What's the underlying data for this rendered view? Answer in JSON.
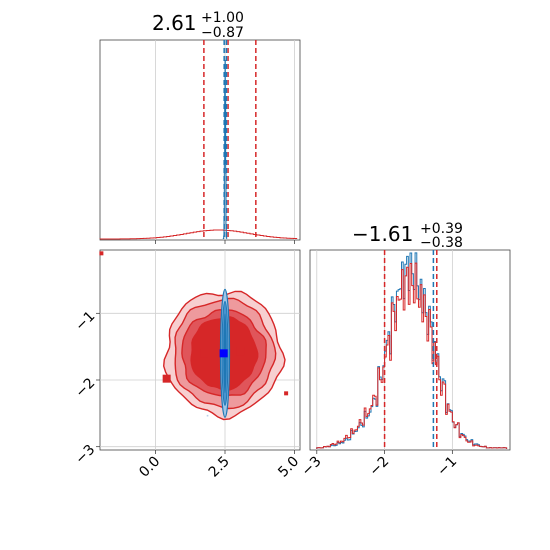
{
  "chart_data": [
    {
      "type": "histogram",
      "panel": "top-left marginal (parameter 1)",
      "title": {
        "value": "2.61",
        "upper": "+1.00",
        "lower": "−0.87"
      },
      "xlim": [
        -2.0,
        5.2
      ],
      "grid": true,
      "series": [
        {
          "name": "",
          "color": "#d62728",
          "dashed_lines_x": [
            1.74,
            2.61,
            3.61
          ],
          "shape": "broad low distribution"
        },
        {
          "name": "",
          "color": "#1f77b4",
          "dashed_lines_x": [
            2.47,
            2.55
          ],
          "shape": "narrow spike near 2.5"
        }
      ]
    },
    {
      "type": "contour",
      "panel": "bottom-left 2D (parameter 1 vs parameter 2)",
      "xlim": [
        -2.0,
        5.2
      ],
      "ylim": [
        -3.05,
        -0.05
      ],
      "x_ticks": [
        "0.0",
        "2.5",
        "5.0"
      ],
      "x_tick_values": [
        0.0,
        2.5,
        5.0
      ],
      "y_ticks": [
        "−1",
        "−2",
        "−3"
      ],
      "y_tick_values": [
        -1,
        -2,
        -3
      ],
      "grid": true,
      "series": [
        {
          "name": "",
          "color": "#d62728",
          "center": [
            2.45,
            -1.6
          ]
        },
        {
          "name": "",
          "color": "#1f77b4",
          "center": [
            2.5,
            -1.6
          ]
        }
      ],
      "markers": [
        {
          "x": -1.95,
          "y": -0.1,
          "color": "#d62728"
        },
        {
          "x": 0.4,
          "y": -1.98,
          "color": "#d62728"
        },
        {
          "x": 1.75,
          "y": -1.6,
          "color": "#d62728"
        },
        {
          "x": 3.05,
          "y": -1.57,
          "color": "#d62728"
        },
        {
          "x": 4.7,
          "y": -2.2,
          "color": "#d62728"
        },
        {
          "x": 2.45,
          "y": -1.6,
          "color": "#0000ff"
        }
      ]
    },
    {
      "type": "histogram",
      "panel": "bottom-right marginal (parameter 2)",
      "title": {
        "value": "−1.61",
        "upper": "+0.39",
        "lower": "−0.38"
      },
      "xlim": [
        -3.1,
        -0.15
      ],
      "x_ticks": [
        "−3",
        "−2",
        "−1"
      ],
      "x_tick_values": [
        -3,
        -2,
        -1
      ],
      "grid": true,
      "series": [
        {
          "name": "",
          "color": "#d62728",
          "dashed_lines_x": [
            -2.0,
            -1.23
          ]
        },
        {
          "name": "",
          "color": "#1f77b4",
          "dashed_lines_x": [
            -1.28
          ]
        }
      ],
      "bin_edges": [
        -3.0,
        -2.9,
        -2.8,
        -2.7,
        -2.6,
        -2.5,
        -2.4,
        -2.3,
        -2.2,
        -2.1,
        -2.0,
        -1.9,
        -1.8,
        -1.7,
        -1.6,
        -1.5,
        -1.4,
        -1.3,
        -1.2,
        -1.1,
        -1.0,
        -0.9,
        -0.8,
        -0.7,
        -0.6,
        -0.5,
        -0.4,
        -0.3,
        -0.2
      ],
      "blue_counts": [
        1,
        2,
        3,
        5,
        8,
        14,
        20,
        28,
        40,
        62,
        90,
        118,
        140,
        150,
        146,
        128,
        108,
        80,
        55,
        34,
        20,
        12,
        7,
        4,
        2,
        1,
        1,
        1
      ],
      "red_counts": [
        1,
        2,
        4,
        6,
        10,
        15,
        22,
        30,
        42,
        60,
        86,
        112,
        132,
        140,
        136,
        122,
        104,
        78,
        52,
        33,
        20,
        11,
        6,
        3,
        2,
        1,
        1,
        1
      ]
    }
  ]
}
